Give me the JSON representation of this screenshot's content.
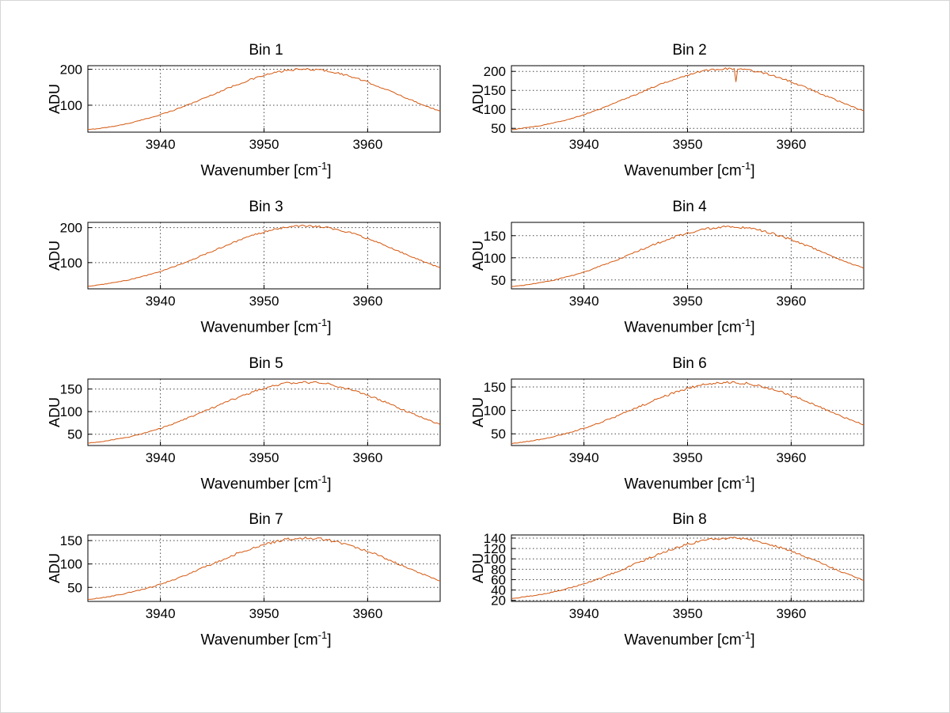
{
  "figure": {
    "background": "#ffffff",
    "line_color": "#d4570e",
    "grid_color": "#4a4a4a",
    "axis_color": "#000000"
  },
  "labels": {
    "xlabel_base": "Wavenumber [cm",
    "xlabel_sup": "-1",
    "xlabel_close": "]",
    "ylabel": "ADU"
  },
  "chart_data": [
    {
      "type": "line",
      "title": "Bin 1",
      "xlabel": "Wavenumber [cm⁻¹]",
      "ylabel": "ADU",
      "xlim": [
        3933,
        3967
      ],
      "ylim": [
        25,
        210
      ],
      "xticks": [
        3940,
        3950,
        3960
      ],
      "yticks": [
        100,
        200
      ],
      "grid": true,
      "x_start": 3933,
      "x_step": 1,
      "noise": 2.2,
      "values": [
        32,
        35,
        39,
        44,
        50,
        57,
        65,
        74,
        83,
        94,
        105,
        117,
        129,
        141,
        153,
        164,
        174,
        183,
        190,
        196,
        199,
        200,
        199,
        196,
        190,
        183,
        174,
        164,
        153,
        141,
        129,
        117,
        105,
        94,
        83
      ]
    },
    {
      "type": "line",
      "title": "Bin 2",
      "xlabel": "Wavenumber [cm⁻¹]",
      "ylabel": "ADU",
      "xlim": [
        3933,
        3967
      ],
      "ylim": [
        40,
        215
      ],
      "xticks": [
        3940,
        3950,
        3960
      ],
      "yticks": [
        50,
        100,
        150,
        200
      ],
      "grid": true,
      "x_start": 3933,
      "x_step": 1,
      "noise": 2.2,
      "spike": {
        "x": 3954.6,
        "y": 172
      },
      "values": [
        46,
        50,
        54,
        58,
        64,
        70,
        78,
        86,
        96,
        106,
        117,
        128,
        139,
        151,
        162,
        173,
        182,
        191,
        198,
        203,
        206,
        207,
        206,
        203,
        198,
        191,
        182,
        173,
        162,
        151,
        139,
        128,
        117,
        106,
        96
      ]
    },
    {
      "type": "line",
      "title": "Bin 3",
      "xlabel": "Wavenumber [cm⁻¹]",
      "ylabel": "ADU",
      "xlim": [
        3933,
        3967
      ],
      "ylim": [
        25,
        215
      ],
      "xticks": [
        3940,
        3950,
        3960
      ],
      "yticks": [
        100,
        200
      ],
      "grid": true,
      "x_start": 3933,
      "x_step": 1,
      "noise": 2.2,
      "values": [
        32,
        36,
        40,
        45,
        51,
        58,
        66,
        75,
        85,
        96,
        108,
        120,
        132,
        145,
        157,
        168,
        179,
        188,
        195,
        200,
        204,
        205,
        204,
        200,
        195,
        188,
        179,
        168,
        157,
        145,
        132,
        120,
        108,
        96,
        85
      ]
    },
    {
      "type": "line",
      "title": "Bin 4",
      "xlabel": "Wavenumber [cm⁻¹]",
      "ylabel": "ADU",
      "xlim": [
        3933,
        3967
      ],
      "ylim": [
        30,
        180
      ],
      "xticks": [
        3940,
        3950,
        3960
      ],
      "yticks": [
        50,
        100,
        150
      ],
      "grid": true,
      "x_start": 3933,
      "x_step": 1,
      "noise": 2.2,
      "values": [
        35,
        37,
        41,
        45,
        49,
        55,
        61,
        68,
        76,
        85,
        94,
        103,
        113,
        123,
        132,
        141,
        149,
        156,
        162,
        166,
        169,
        170,
        169,
        166,
        162,
        156,
        149,
        141,
        132,
        123,
        113,
        103,
        94,
        85,
        76
      ]
    },
    {
      "type": "line",
      "title": "Bin 5",
      "xlabel": "Wavenumber [cm⁻¹]",
      "ylabel": "ADU",
      "xlim": [
        3933,
        3967
      ],
      "ylim": [
        25,
        172
      ],
      "xticks": [
        3940,
        3950,
        3960
      ],
      "yticks": [
        50,
        100,
        150
      ],
      "grid": true,
      "x_start": 3933,
      "x_step": 1,
      "noise": 2.2,
      "values": [
        30,
        32,
        36,
        40,
        44,
        50,
        56,
        63,
        71,
        80,
        89,
        98,
        108,
        118,
        127,
        136,
        144,
        151,
        157,
        162,
        164,
        165,
        164,
        162,
        157,
        151,
        144,
        136,
        127,
        118,
        108,
        98,
        89,
        80,
        71
      ]
    },
    {
      "type": "line",
      "title": "Bin 6",
      "xlabel": "Wavenumber [cm⁻¹]",
      "ylabel": "ADU",
      "xlim": [
        3933,
        3967
      ],
      "ylim": [
        25,
        167
      ],
      "xticks": [
        3940,
        3950,
        3960
      ],
      "yticks": [
        50,
        100,
        150
      ],
      "grid": true,
      "x_start": 3933,
      "x_step": 1,
      "noise": 2.2,
      "values": [
        29,
        32,
        35,
        39,
        44,
        49,
        55,
        62,
        69,
        78,
        86,
        96,
        105,
        114,
        124,
        132,
        140,
        147,
        152,
        157,
        159,
        160,
        159,
        157,
        152,
        147,
        140,
        132,
        124,
        114,
        105,
        96,
        86,
        78,
        69
      ]
    },
    {
      "type": "line",
      "title": "Bin 7",
      "xlabel": "Wavenumber [cm⁻¹]",
      "ylabel": "ADU",
      "xlim": [
        3933,
        3967
      ],
      "ylim": [
        20,
        162
      ],
      "xticks": [
        3940,
        3950,
        3960
      ],
      "yticks": [
        50,
        100,
        150
      ],
      "grid": true,
      "x_start": 3933,
      "x_step": 1,
      "noise": 2.2,
      "values": [
        24,
        27,
        30,
        34,
        39,
        44,
        50,
        57,
        64,
        73,
        81,
        91,
        100,
        109,
        119,
        127,
        135,
        142,
        147,
        152,
        154,
        155,
        154,
        152,
        147,
        142,
        135,
        127,
        119,
        109,
        100,
        91,
        81,
        73,
        64
      ]
    },
    {
      "type": "line",
      "title": "Bin 8",
      "xlabel": "Wavenumber [cm⁻¹]",
      "ylabel": "ADU",
      "xlim": [
        3933,
        3967
      ],
      "ylim": [
        18,
        146
      ],
      "xticks": [
        3940,
        3950,
        3960
      ],
      "yticks": [
        20,
        40,
        60,
        80,
        100,
        120,
        140
      ],
      "grid": true,
      "x_start": 3933,
      "x_step": 1,
      "noise": 2.0,
      "values": [
        23,
        26,
        29,
        32,
        36,
        41,
        46,
        52,
        59,
        66,
        74,
        82,
        91,
        99,
        107,
        115,
        122,
        128,
        133,
        137,
        139,
        140,
        139,
        137,
        133,
        128,
        122,
        115,
        107,
        99,
        91,
        82,
        74,
        66,
        59
      ]
    }
  ]
}
